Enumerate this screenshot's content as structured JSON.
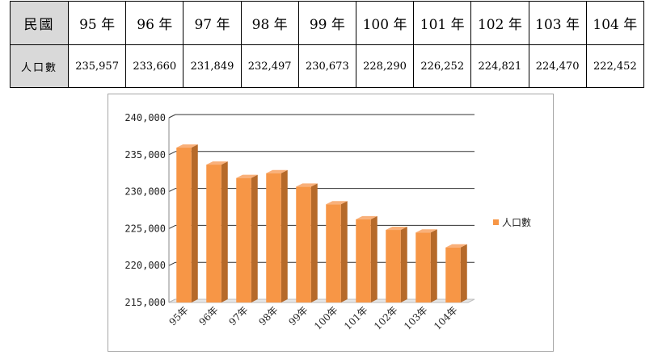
{
  "table": {
    "row_header_1": "民國",
    "row_header_2": "人口數",
    "years": [
      "95 年",
      "96 年",
      "97 年",
      "98 年",
      "99 年",
      "100 年",
      "101 年",
      "102 年",
      "103 年",
      "104 年"
    ],
    "values": [
      "235,957",
      "233,660",
      "231,849",
      "232,497",
      "230,673",
      "228,290",
      "226,252",
      "224,821",
      "224,470",
      "222,452"
    ]
  },
  "chart_data": {
    "type": "bar",
    "categories": [
      "95年",
      "96年",
      "97年",
      "98年",
      "99年",
      "100年",
      "101年",
      "102年",
      "103年",
      "104年"
    ],
    "series": [
      {
        "name": "人口數",
        "values": [
          235957,
          233660,
          231849,
          232497,
          230673,
          228290,
          226252,
          224821,
          224470,
          222452
        ]
      }
    ],
    "ylim": [
      215000,
      240000
    ],
    "yticks": [
      215000,
      220000,
      225000,
      230000,
      235000,
      240000
    ],
    "ytick_labels": [
      "215,000",
      "220,000",
      "225,000",
      "230,000",
      "235,000",
      "240,000"
    ],
    "grid": true,
    "legend": "right",
    "bar_color": "#f79646",
    "bar_side_color": "#b66a2a"
  }
}
